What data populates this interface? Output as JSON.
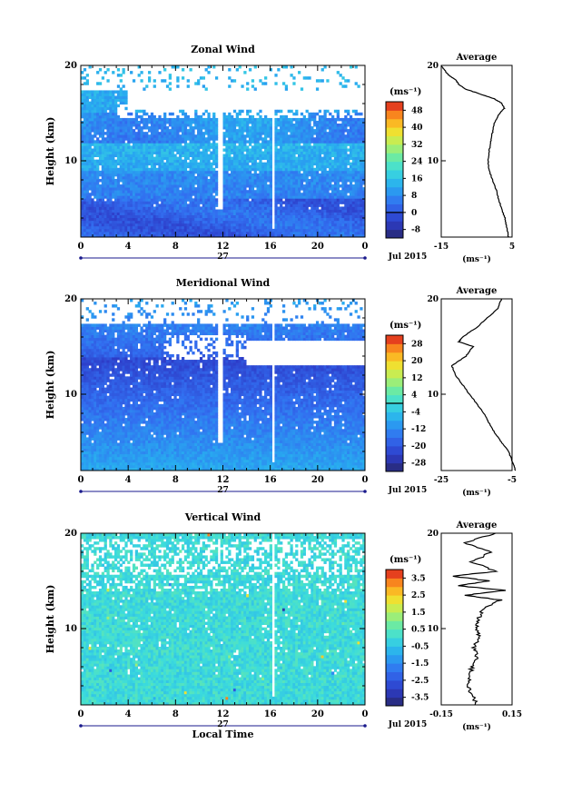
{
  "chart_data": [
    {
      "type": "heatmap",
      "title": "Zonal Wind",
      "ylabel": "Height (km)",
      "xlabel": "",
      "ylim": [
        2,
        20
      ],
      "xlim": [
        0,
        24
      ],
      "x_ticks": [
        "0",
        "4",
        "8",
        "12",
        "16",
        "20",
        "0"
      ],
      "y_ticks": [
        "10",
        "20"
      ],
      "date_marker": "27",
      "date_label": "Jul 2015",
      "colorbar": {
        "unit": "(ms⁻¹)",
        "ticks": [
          "-8",
          "0",
          "8",
          "16",
          "24",
          "32",
          "40",
          "48"
        ],
        "range": [
          -12,
          52
        ],
        "zero_line": 0
      },
      "average": {
        "title": "Average",
        "xlabel": "(ms⁻¹)",
        "x_ticks": [
          "-15",
          "5"
        ],
        "xlim": [
          -15,
          5
        ],
        "y_ticks": [
          "10",
          "20"
        ],
        "ylim": [
          2,
          20
        ],
        "profile": [
          [
            2,
            4
          ],
          [
            3,
            3.5
          ],
          [
            4,
            3
          ],
          [
            5,
            2
          ],
          [
            6,
            1.2
          ],
          [
            7,
            0.5
          ],
          [
            8,
            -0.5
          ],
          [
            9,
            -1.5
          ],
          [
            10,
            -1.8
          ],
          [
            11,
            -1.5
          ],
          [
            12,
            -1.0
          ],
          [
            13,
            -0.5
          ],
          [
            14,
            0
          ],
          [
            15,
            1.5
          ],
          [
            15.5,
            2.8
          ],
          [
            16,
            2.2
          ],
          [
            16.5,
            0
          ],
          [
            17,
            -4
          ],
          [
            17.5,
            -8
          ],
          [
            18,
            -10
          ],
          [
            18.5,
            -11
          ],
          [
            19,
            -13
          ],
          [
            19.5,
            -14
          ],
          [
            20,
            -15
          ]
        ]
      }
    },
    {
      "type": "heatmap",
      "title": "Meridional Wind",
      "ylabel": "Height (km)",
      "xlabel": "",
      "ylim": [
        2,
        20
      ],
      "xlim": [
        0,
        24
      ],
      "x_ticks": [
        "0",
        "4",
        "8",
        "12",
        "16",
        "20",
        "0"
      ],
      "y_ticks": [
        "10",
        "20"
      ],
      "date_marker": "27",
      "date_label": "Jul 2015",
      "colorbar": {
        "unit": "(ms⁻¹)",
        "ticks": [
          "-28",
          "-20",
          "-12",
          "-4",
          "4",
          "12",
          "20",
          "28"
        ],
        "range": [
          -32,
          32
        ],
        "zero_line": 0
      },
      "average": {
        "title": "Average",
        "xlabel": "(ms⁻¹)",
        "x_ticks": [
          "-25",
          "-5"
        ],
        "xlim": [
          -25,
          -5
        ],
        "y_ticks": [
          "10",
          "20"
        ],
        "ylim": [
          2,
          20
        ],
        "profile": [
          [
            2,
            -4
          ],
          [
            3,
            -5
          ],
          [
            4,
            -6
          ],
          [
            5,
            -8
          ],
          [
            6,
            -10
          ],
          [
            7,
            -11.5
          ],
          [
            8,
            -13
          ],
          [
            9,
            -15
          ],
          [
            10,
            -17
          ],
          [
            11,
            -19
          ],
          [
            12,
            -21
          ],
          [
            13,
            -22
          ],
          [
            14,
            -18
          ],
          [
            15,
            -16
          ],
          [
            15.5,
            -20
          ],
          [
            16,
            -19
          ],
          [
            17,
            -15
          ],
          [
            18,
            -12
          ],
          [
            19,
            -9
          ],
          [
            20,
            -8
          ]
        ]
      }
    },
    {
      "type": "heatmap",
      "title": "Vertical Wind",
      "ylabel": "Height (km)",
      "xlabel": "Local Time",
      "ylim": [
        2,
        20
      ],
      "xlim": [
        0,
        24
      ],
      "x_ticks": [
        "0",
        "4",
        "8",
        "12",
        "16",
        "20",
        "0"
      ],
      "y_ticks": [
        "10",
        "20"
      ],
      "date_marker": "27",
      "date_label": "Jul 2015",
      "colorbar": {
        "unit": "(ms⁻¹)",
        "ticks": [
          "-3.5",
          "-2.5",
          "-1.5",
          "-0.5",
          "0.5",
          "1.5",
          "2.5",
          "3.5"
        ],
        "range": [
          -4,
          4
        ],
        "zero_line": null
      },
      "average": {
        "title": "Average",
        "xlabel": "(ms⁻¹)",
        "x_ticks": [
          "-0.15",
          "0.15"
        ],
        "xlim": [
          -0.15,
          0.15
        ],
        "y_ticks": [
          "10",
          "20"
        ],
        "ylim": [
          2,
          20
        ],
        "profile": [
          [
            2,
            0
          ],
          [
            3,
            -0.02
          ],
          [
            4,
            -0.04
          ],
          [
            5,
            -0.03
          ],
          [
            6,
            -0.02
          ],
          [
            7,
            0
          ],
          [
            8,
            -0.01
          ],
          [
            9,
            0.01
          ],
          [
            10,
            0
          ],
          [
            11,
            0.01
          ],
          [
            12,
            0.02
          ],
          [
            13,
            0.1
          ],
          [
            13.5,
            -0.05
          ],
          [
            14,
            0.12
          ],
          [
            14.5,
            -0.08
          ],
          [
            15,
            0.05
          ],
          [
            15.5,
            -0.1
          ],
          [
            16,
            0.08
          ],
          [
            17,
            -0.02
          ],
          [
            18,
            0.06
          ],
          [
            19,
            -0.05
          ],
          [
            20,
            0.08
          ]
        ]
      }
    }
  ]
}
